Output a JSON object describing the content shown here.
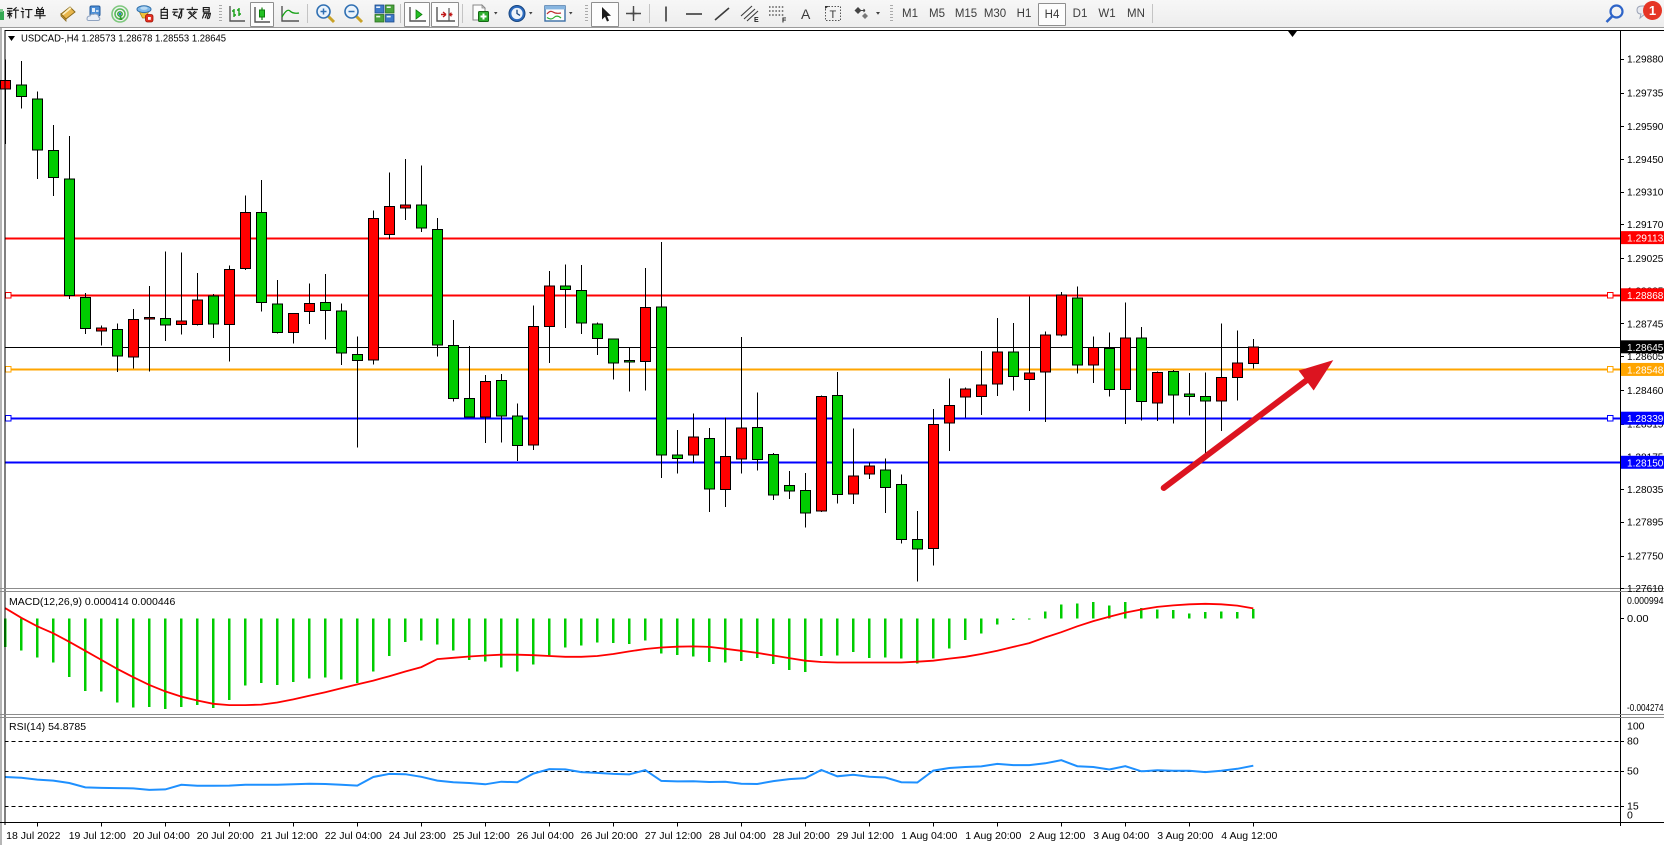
{
  "toolbar": {
    "new_order_label": "新订单",
    "autotrade_label": "自动交易",
    "chart_type_icons": [
      "bar-chart",
      "candlestick-chart",
      "line-chart"
    ],
    "selected_chart_type": "candlestick-chart",
    "timeframes": [
      "M1",
      "M5",
      "M15",
      "M30",
      "H1",
      "H4",
      "D1",
      "W1",
      "MN"
    ],
    "selected_timeframe": "H4",
    "message_badge_count": "1"
  },
  "chart_data": {
    "type": "candlestick",
    "title": "USDCAD-,H4",
    "ohlc_display": {
      "open": "1.28573",
      "high": "1.28678",
      "low": "1.28553",
      "close": "1.28645"
    },
    "bull_color": "#ff0000",
    "bear_color": "#00cc00",
    "x_labels": [
      "18 Jul 2022",
      "19 Jul 12:00",
      "20 Jul 04:00",
      "20 Jul 20:00",
      "21 Jul 12:00",
      "22 Jul 04:00",
      "24 Jul 23:00",
      "25 Jul 12:00",
      "26 Jul 04:00",
      "26 Jul 20:00",
      "27 Jul 12:00",
      "28 Jul 04:00",
      "28 Jul 20:00",
      "29 Jul 12:00",
      "1 Aug 04:00",
      "1 Aug 20:00",
      "2 Aug 12:00",
      "3 Aug 04:00",
      "3 Aug 20:00",
      "4 Aug 12:00"
    ],
    "x_label_first_candle": 2,
    "x_label_step": 4,
    "price_ticks": [
      "1.29880",
      "1.29735",
      "1.29590",
      "1.29450",
      "1.29310",
      "1.29170",
      "1.29025",
      "1.28885",
      "1.28745",
      "1.28605",
      "1.28460",
      "1.28315",
      "1.28175",
      "1.28035",
      "1.27895",
      "1.27750",
      "1.27610"
    ],
    "ylim": [
      1.27594,
      1.30003
    ],
    "current_price": "1.28645",
    "candles": [
      [
        1.2975,
        1.29877,
        1.29515,
        1.29786
      ],
      [
        1.29768,
        1.29871,
        1.29666,
        1.29717
      ],
      [
        1.29707,
        1.29739,
        1.29364,
        1.29489
      ],
      [
        1.29486,
        1.29595,
        1.29291,
        1.29371
      ],
      [
        1.29364,
        1.29548,
        1.28849,
        1.28864
      ],
      [
        1.28857,
        1.28875,
        1.287,
        1.28723
      ],
      [
        1.28713,
        1.28736,
        1.28651,
        1.28725
      ],
      [
        1.28719,
        1.28745,
        1.28538,
        1.28605
      ],
      [
        1.28602,
        1.28807,
        1.28551,
        1.28763
      ],
      [
        1.28765,
        1.28905,
        1.28539,
        1.2877
      ],
      [
        1.28767,
        1.29054,
        1.28669,
        1.28739
      ],
      [
        1.28741,
        1.2905,
        1.28698,
        1.28755
      ],
      [
        1.28741,
        1.28962,
        1.28736,
        1.28845
      ],
      [
        1.28863,
        1.28871,
        1.28683,
        1.28743
      ],
      [
        1.28741,
        1.28993,
        1.28582,
        1.28977
      ],
      [
        1.2898,
        1.29293,
        1.28975,
        1.2922
      ],
      [
        1.2922,
        1.2936,
        1.28797,
        1.28836
      ],
      [
        1.28829,
        1.28932,
        1.28702,
        1.28707
      ],
      [
        1.28706,
        1.2879,
        1.2866,
        1.28787
      ],
      [
        1.28797,
        1.28917,
        1.28742,
        1.2883
      ],
      [
        1.28835,
        1.28958,
        1.28676,
        1.28801
      ],
      [
        1.28798,
        1.2883,
        1.28567,
        1.28618
      ],
      [
        1.28613,
        1.2869,
        1.28213,
        1.28587
      ],
      [
        1.28589,
        1.2923,
        1.2857,
        1.29194
      ],
      [
        1.29126,
        1.29393,
        1.29107,
        1.29247
      ],
      [
        1.2924,
        1.29449,
        1.29189,
        1.29252
      ],
      [
        1.29252,
        1.29422,
        1.29138,
        1.29155
      ],
      [
        1.29147,
        1.29198,
        1.28604,
        1.28652
      ],
      [
        1.2865,
        1.2876,
        1.28411,
        1.28423
      ],
      [
        1.28423,
        1.28649,
        1.28341,
        1.28345
      ],
      [
        1.28344,
        1.28525,
        1.28232,
        1.28496
      ],
      [
        1.28501,
        1.28529,
        1.28235,
        1.28348
      ],
      [
        1.28348,
        1.28402,
        1.28156,
        1.28222
      ],
      [
        1.28225,
        1.28823,
        1.28203,
        1.28731
      ],
      [
        1.28733,
        1.2897,
        1.28575,
        1.28906
      ],
      [
        1.28905,
        1.28998,
        1.28726,
        1.28891
      ],
      [
        1.28887,
        1.28995,
        1.287,
        1.28748
      ],
      [
        1.28742,
        1.2875,
        1.2861,
        1.28681
      ],
      [
        1.28679,
        1.2868,
        1.28505,
        1.28576
      ],
      [
        1.28586,
        1.28645,
        1.28453,
        1.28583
      ],
      [
        1.28581,
        1.28983,
        1.28457,
        1.28813
      ],
      [
        1.28815,
        1.29095,
        1.28083,
        1.28182
      ],
      [
        1.28181,
        1.28288,
        1.28102,
        1.28167
      ],
      [
        1.28181,
        1.28359,
        1.28146,
        1.28259
      ],
      [
        1.28253,
        1.28296,
        1.27937,
        1.28036
      ],
      [
        1.28033,
        1.28343,
        1.27958,
        1.28174
      ],
      [
        1.28164,
        1.28688,
        1.28102,
        1.28296
      ],
      [
        1.28299,
        1.2845,
        1.28115,
        1.28162
      ],
      [
        1.28184,
        1.2819,
        1.27988,
        1.28009
      ],
      [
        1.2805,
        1.28112,
        1.27992,
        1.28027
      ],
      [
        1.28029,
        1.28105,
        1.27871,
        1.27933
      ],
      [
        1.27941,
        1.28437,
        1.27936,
        1.28431
      ],
      [
        1.28437,
        1.28536,
        1.27974,
        1.28011
      ],
      [
        1.28015,
        1.28295,
        1.27972,
        1.28091
      ],
      [
        1.281,
        1.28149,
        1.28079,
        1.28135
      ],
      [
        1.28116,
        1.28166,
        1.27933,
        1.28042
      ],
      [
        1.28054,
        1.28097,
        1.27801,
        1.2782
      ],
      [
        1.2782,
        1.27941,
        1.2764,
        1.27778
      ],
      [
        1.27781,
        1.28379,
        1.27708,
        1.28312
      ],
      [
        1.28318,
        1.2851,
        1.28198,
        1.28394
      ],
      [
        1.28429,
        1.2847,
        1.28343,
        1.28464
      ],
      [
        1.28432,
        1.28627,
        1.28353,
        1.28482
      ],
      [
        1.28485,
        1.28769,
        1.28434,
        1.28622
      ],
      [
        1.28622,
        1.28746,
        1.28457,
        1.28517
      ],
      [
        1.28505,
        1.2886,
        1.2837,
        1.28533
      ],
      [
        1.28538,
        1.2871,
        1.28323,
        1.28695
      ],
      [
        1.28696,
        1.28881,
        1.2869,
        1.28868
      ],
      [
        1.28855,
        1.28903,
        1.2853,
        1.28566
      ],
      [
        1.28566,
        1.2869,
        1.2849,
        1.28642
      ],
      [
        1.28637,
        1.28706,
        1.28432,
        1.28463
      ],
      [
        1.28463,
        1.28835,
        1.28315,
        1.28683
      ],
      [
        1.28683,
        1.2873,
        1.2833,
        1.28411
      ],
      [
        1.28405,
        1.2854,
        1.28327,
        1.28535
      ],
      [
        1.2854,
        1.28545,
        1.28317,
        1.28438
      ],
      [
        1.28442,
        1.28533,
        1.28351,
        1.28432
      ],
      [
        1.28432,
        1.28534,
        1.28168,
        1.28412
      ],
      [
        1.28412,
        1.28745,
        1.28285,
        1.28514
      ],
      [
        1.28514,
        1.28714,
        1.28415,
        1.28575
      ],
      [
        1.28573,
        1.28678,
        1.28553,
        1.28645
      ]
    ],
    "hlines": [
      {
        "price": 1.29113,
        "label": "1.29113",
        "color": "#ff0000",
        "handles": false
      },
      {
        "price": 1.28868,
        "label": "1.28868",
        "color": "#ff0000",
        "handles": true
      },
      {
        "price": 1.28548,
        "label": "1.28548",
        "color": "#ffa500",
        "handles": true
      },
      {
        "price": 1.28339,
        "label": "1.28339",
        "color": "#0000ff",
        "handles": true
      },
      {
        "price": 1.2815,
        "label": "1.28150",
        "color": "#0000ff",
        "handles": false
      }
    ],
    "bid_line": {
      "price": 1.28645,
      "label": "1.28645",
      "color": "#000000"
    },
    "arrow": {
      "from_bar": 72.4,
      "from_price": 1.2804,
      "to_bar": 83.0,
      "to_price": 1.28588,
      "color": "#dc1420"
    },
    "macd": {
      "title": "MACD(12,26,9)",
      "value": "0.000414",
      "signal_value": "0.000446",
      "axis_max": "0.000994",
      "axis_zero": "0.00",
      "axis_min": "-0.004274",
      "ylim": [
        -0.004497,
        0.001124
      ],
      "hist_color": "#00cc00",
      "signal_color": "#ff0000",
      "histogram": [
        -0.00138,
        -0.001535,
        -0.001866,
        -0.002111,
        -0.002805,
        -0.003452,
        -0.00349,
        -0.004,
        -0.004246,
        -0.004222,
        -0.004307,
        -0.004222,
        -0.004123,
        -0.00427,
        -0.003877,
        -0.003207,
        -0.003087,
        -0.003172,
        -0.003026,
        -0.002879,
        -0.002818,
        -0.002903,
        -0.003087,
        -0.002536,
        -0.001805,
        -0.001133,
        -0.001072,
        -0.001256,
        -0.001535,
        -0.001989,
        -0.002074,
        -0.002357,
        -0.002536,
        -0.002196,
        -0.001805,
        -0.001412,
        -0.001318,
        -0.001171,
        -0.001195,
        -0.001233,
        -0.001072,
        -0.001681,
        -0.001766,
        -0.001828,
        -0.002088,
        -0.002111,
        -0.00205,
        -0.001903,
        -0.002173,
        -0.002475,
        -0.00256,
        -0.001805,
        -0.001781,
        -0.001619,
        -0.001903,
        -0.001866,
        -0.001927,
        -0.002149,
        -0.001927,
        -0.00144,
        -0.001049,
        -0.000742,
        -0.000316,
        -9.4e-05,
        -5e-05,
        0.000293,
        0.000638,
        0.000671,
        0.000756,
        0.000576,
        0.000756,
        0.000453,
        0.000392,
        0.000368,
        0.000208,
        0.000269,
        0.000293,
        0.000269,
        0.000414
      ],
      "signal": [
        0.000453,
        0.0,
        -0.000401,
        -0.000732,
        -0.001133,
        -0.001559,
        -0.001989,
        -0.002414,
        -0.002805,
        -0.003172,
        -0.003475,
        -0.003722,
        -0.003906,
        -0.004062,
        -0.004123,
        -0.004123,
        -0.004099,
        -0.004,
        -0.003854,
        -0.003684,
        -0.003513,
        -0.00333,
        -0.003146,
        -0.002966,
        -0.002758,
        -0.002536,
        -0.002328,
        -0.001951,
        -0.001889,
        -0.001828,
        -0.001781,
        -0.001743,
        -0.001743,
        -0.001766,
        -0.001805,
        -0.001842,
        -0.001842,
        -0.001805,
        -0.00171,
        -0.001587,
        -0.001474,
        -0.001403,
        -0.001365,
        -0.001352,
        -0.001377,
        -0.001464,
        -0.001559,
        -0.001658,
        -0.001781,
        -0.001903,
        -0.002026,
        -0.002088,
        -0.002111,
        -0.002111,
        -0.002111,
        -0.002111,
        -0.002111,
        -0.002074,
        -0.002026,
        -0.001927,
        -0.001842,
        -0.00171,
        -0.001559,
        -0.001377,
        -0.001195,
        -0.000926,
        -0.00068,
        -0.000401,
        -0.000156,
        5.2e-05,
        0.000246,
        0.000392,
        0.000515,
        0.000586,
        0.000638,
        0.000661,
        0.000638,
        0.000576,
        0.000446
      ]
    },
    "rsi": {
      "title": "RSI(14)",
      "value": "54.8785",
      "color": "#1e90ff",
      "levels": [
        {
          "label": "100",
          "value": 100,
          "dashed": false
        },
        {
          "label": "80",
          "value": 80,
          "dashed": true
        },
        {
          "label": "50",
          "value": 50,
          "dashed": true
        },
        {
          "label": "15",
          "value": 15,
          "dashed": true
        },
        {
          "label": "0",
          "value": 0,
          "dashed": false
        }
      ],
      "values": [
        43.6,
        42.8,
        41.0,
        40.0,
        37.6,
        33.2,
        32.7,
        32.5,
        32.2,
        30.7,
        31.2,
        35.8,
        34.8,
        34.8,
        35.0,
        35.8,
        35.8,
        35.8,
        36.3,
        36.9,
        36.6,
        35.8,
        35.0,
        43.6,
        46.7,
        46.4,
        43.8,
        40.0,
        38.4,
        37.6,
        36.3,
        38.9,
        38.4,
        47.0,
        51.5,
        51.2,
        48.5,
        47.7,
        46.7,
        46.2,
        50.5,
        39.7,
        39.2,
        39.4,
        38.6,
        38.9,
        36.9,
        36.6,
        39.5,
        41.5,
        42.5,
        50.6,
        44.3,
        45.9,
        43.8,
        43.1,
        38.4,
        38.1,
        50.0,
        52.6,
        53.6,
        54.2,
        56.7,
        55.5,
        55.5,
        57.3,
        60.4,
        54.4,
        53.6,
        51.1,
        54.4,
        49.3,
        50.3,
        49.8,
        49.8,
        48.5,
        49.8,
        51.8,
        54.9
      ]
    }
  }
}
